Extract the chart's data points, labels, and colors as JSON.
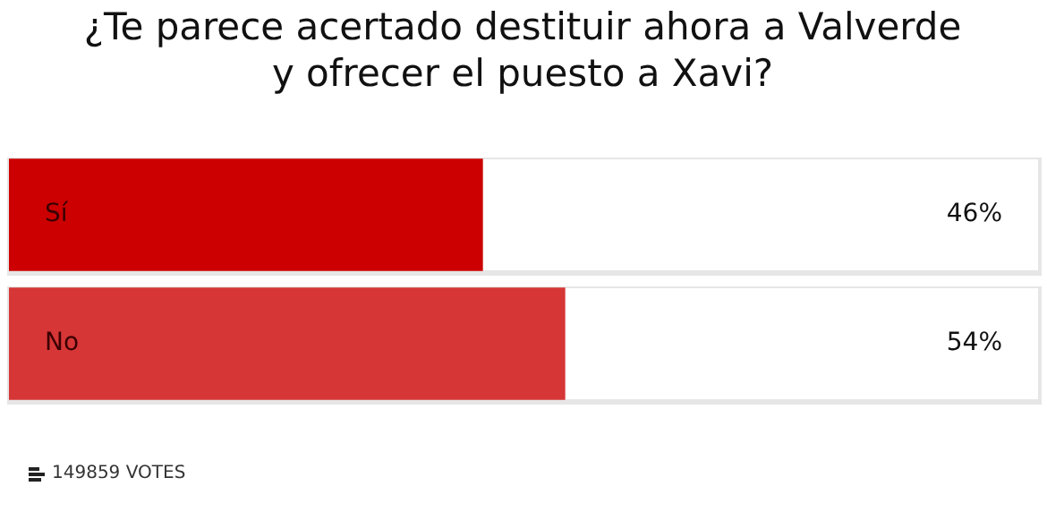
{
  "chart_data": {
    "type": "bar",
    "orientation": "horizontal",
    "title": "¿Te parece acertado destituir ahora a Valverde y ofrecer el puesto a Xavi?",
    "categories": [
      "Sí",
      "No"
    ],
    "values": [
      46,
      54
    ],
    "colors": [
      "#cc0000",
      "#d63636"
    ],
    "value_labels": [
      "46%",
      "54%"
    ],
    "xlim": [
      0,
      100
    ],
    "tick_labels": false,
    "annotations": [
      "149859 VOTES"
    ]
  }
}
